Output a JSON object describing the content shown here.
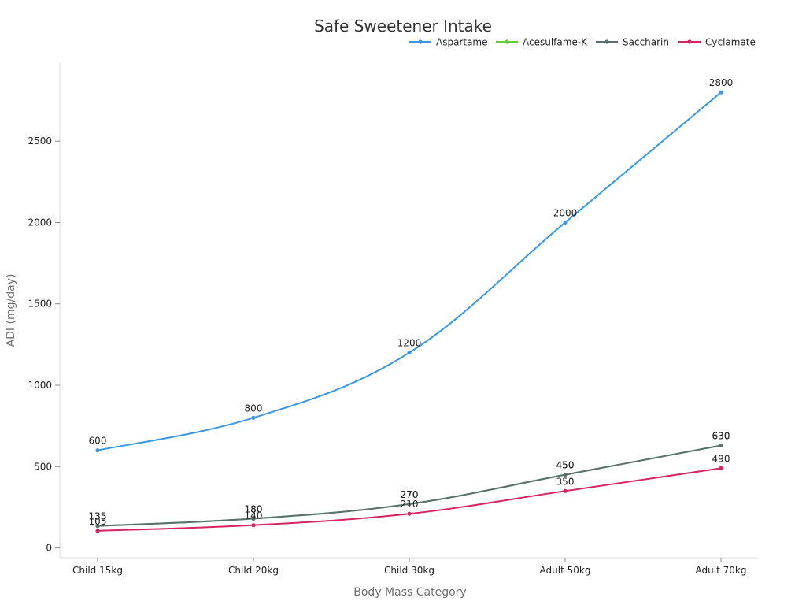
{
  "chart_data": {
    "type": "line",
    "title": "Safe Sweetener Intake",
    "xlabel": "Body Mass Category",
    "ylabel": "ADI (mg/day)",
    "categories": [
      "Child 15kg",
      "Child 20kg",
      "Child 30kg",
      "Adult 50kg",
      "Adult 70kg"
    ],
    "ylim": [
      -60,
      2980
    ],
    "yticks": [
      0,
      500,
      1000,
      1500,
      2000,
      2500
    ],
    "legend_position": "top-right",
    "series": [
      {
        "name": "Aspartame",
        "color": "#3b97e0",
        "values": [
          600,
          800,
          1200,
          2000,
          2800
        ]
      },
      {
        "name": "Acesulfame-K",
        "color": "#66cc33",
        "values": [
          135,
          180,
          270,
          450,
          630
        ]
      },
      {
        "name": "Saccharin",
        "color": "#5a7070",
        "values": [
          135,
          180,
          270,
          450,
          630
        ]
      },
      {
        "name": "Cyclamate",
        "color": "#d8245e",
        "values": [
          105,
          140,
          210,
          350,
          490
        ]
      }
    ]
  }
}
